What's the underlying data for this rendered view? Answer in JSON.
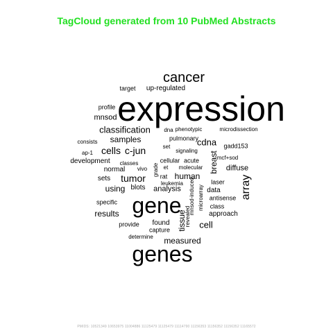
{
  "title": "TagCloud generated from 10 PubMed Abstracts",
  "title_color": "#22e022",
  "footer": "PMIDS: 10521349 10653975 11004886 11125479 11125479 11114790 11156353 11156352 11156352 11165572",
  "words": [
    {
      "text": "expression",
      "size": 50
    },
    {
      "text": "gene",
      "size": 32
    },
    {
      "text": "genes",
      "size": 32
    },
    {
      "text": "cancer",
      "size": 20
    },
    {
      "text": "array",
      "size": 16,
      "vertical": true
    },
    {
      "text": "cells",
      "size": 14
    },
    {
      "text": "c-jun",
      "size": 14
    },
    {
      "text": "classification",
      "size": 13
    },
    {
      "text": "tumor",
      "size": 14
    },
    {
      "text": "cdna",
      "size": 13
    },
    {
      "text": "tissue",
      "size": 12,
      "vertical": true
    },
    {
      "text": "cell",
      "size": 13
    },
    {
      "text": "samples",
      "size": 12
    },
    {
      "text": "breast",
      "size": 12,
      "vertical": true
    },
    {
      "text": "human",
      "size": 12
    },
    {
      "text": "using",
      "size": 12
    },
    {
      "text": "results",
      "size": 12
    },
    {
      "text": "measured",
      "size": 12
    },
    {
      "text": "analysis",
      "size": 11
    },
    {
      "text": "diffuse",
      "size": 11
    },
    {
      "text": "mnsod",
      "size": 11
    },
    {
      "text": "target",
      "size": 9
    },
    {
      "text": "up-regulated",
      "size": 10
    },
    {
      "text": "profile",
      "size": 9
    },
    {
      "text": "dna",
      "size": 8
    },
    {
      "text": "phenotypic",
      "size": 8
    },
    {
      "text": "microdissection",
      "size": 8
    },
    {
      "text": "consists",
      "size": 8
    },
    {
      "text": "pulmonary",
      "size": 9
    },
    {
      "text": "gadd153",
      "size": 9
    },
    {
      "text": "set",
      "size": 8
    },
    {
      "text": "signaling",
      "size": 8
    },
    {
      "text": "ap-1",
      "size": 8
    },
    {
      "text": "cellular",
      "size": 9
    },
    {
      "text": "acute",
      "size": 9
    },
    {
      "text": "mcf+sod",
      "size": 8
    },
    {
      "text": "development",
      "size": 10
    },
    {
      "text": "classes",
      "size": 8
    },
    {
      "text": "grade",
      "size": 8,
      "vertical": true
    },
    {
      "text": "et",
      "size": 8
    },
    {
      "text": "molecular",
      "size": 8
    },
    {
      "text": "normal",
      "size": 10
    },
    {
      "text": "vivo",
      "size": 8
    },
    {
      "text": "rat",
      "size": 9
    },
    {
      "text": "sets",
      "size": 10
    },
    {
      "text": "leukemia",
      "size": 8
    },
    {
      "text": "laser",
      "size": 9
    },
    {
      "text": "blots",
      "size": 10
    },
    {
      "text": "mnsod-induced",
      "size": 8,
      "vertical": true
    },
    {
      "text": "microarray",
      "size": 8,
      "vertical": true
    },
    {
      "text": "data",
      "size": 10
    },
    {
      "text": "antisense",
      "size": 9
    },
    {
      "text": "specific",
      "size": 9
    },
    {
      "text": "revealed",
      "size": 8,
      "vertical": true
    },
    {
      "text": "class",
      "size": 9
    },
    {
      "text": "approach",
      "size": 10
    },
    {
      "text": "found",
      "size": 10
    },
    {
      "text": "provide",
      "size": 9
    },
    {
      "text": "capture",
      "size": 9
    },
    {
      "text": "determine",
      "size": 8
    }
  ]
}
